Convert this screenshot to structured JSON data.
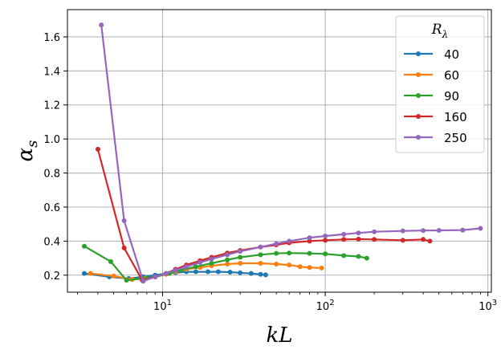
{
  "chart_data": {
    "type": "line",
    "xlabel": "kL",
    "ylabel": "α_s",
    "xscale": "log",
    "xlim": [
      2.6,
      1050
    ],
    "ylim": [
      0.1,
      1.76
    ],
    "grid": true,
    "legend": {
      "title": "R_λ",
      "placement": "top-right"
    },
    "x_ticks": [
      {
        "value": 10,
        "base": "10",
        "exp": "1"
      },
      {
        "value": 100,
        "base": "10",
        "exp": "2"
      },
      {
        "value": 1000,
        "base": "10",
        "exp": "3"
      }
    ],
    "y_ticks": [
      {
        "value": 0.2,
        "label": "0.2"
      },
      {
        "value": 0.4,
        "label": "0.4"
      },
      {
        "value": 0.6,
        "label": "0.6"
      },
      {
        "value": 0.8,
        "label": "0.8"
      },
      {
        "value": 1.0,
        "label": "1.0"
      },
      {
        "value": 1.2,
        "label": "1.2"
      },
      {
        "value": 1.4,
        "label": "1.4"
      },
      {
        "value": 1.6,
        "label": "1.6"
      }
    ],
    "series": [
      {
        "name": "40",
        "color": "#1f77b4",
        "x": [
          3.3,
          4.7,
          6.2,
          7.6,
          9.0,
          10.5,
          12,
          14,
          16,
          19,
          22,
          26,
          30,
          35,
          40,
          43
        ],
        "y": [
          0.21,
          0.19,
          0.18,
          0.19,
          0.2,
          0.21,
          0.215,
          0.22,
          0.22,
          0.22,
          0.22,
          0.218,
          0.214,
          0.21,
          0.205,
          0.202
        ]
      },
      {
        "name": "60",
        "color": "#ff7f0e",
        "x": [
          3.6,
          5.0,
          6.5,
          7.8,
          9.0,
          10.5,
          12,
          14,
          17,
          20,
          25,
          30,
          40,
          50,
          60,
          70,
          80,
          95
        ],
        "y": [
          0.21,
          0.195,
          0.175,
          0.18,
          0.19,
          0.205,
          0.22,
          0.235,
          0.245,
          0.255,
          0.265,
          0.27,
          0.27,
          0.265,
          0.26,
          0.25,
          0.245,
          0.242
        ]
      },
      {
        "name": "90",
        "color": "#2ca02c",
        "x": [
          3.3,
          4.8,
          6.0,
          7.5,
          9.0,
          11,
          13,
          16,
          20,
          25,
          30,
          40,
          50,
          60,
          80,
          100,
          130,
          160,
          180
        ],
        "y": [
          0.37,
          0.28,
          0.17,
          0.18,
          0.19,
          0.21,
          0.23,
          0.25,
          0.27,
          0.29,
          0.305,
          0.32,
          0.328,
          0.33,
          0.328,
          0.325,
          0.315,
          0.31,
          0.3
        ]
      },
      {
        "name": "160",
        "color": "#d62728",
        "x": [
          4.0,
          5.8,
          7.5,
          9.0,
          10.5,
          12,
          14,
          17,
          20,
          25,
          30,
          40,
          50,
          60,
          80,
          100,
          130,
          160,
          200,
          300,
          400,
          440
        ],
        "y": [
          0.94,
          0.36,
          0.17,
          0.19,
          0.21,
          0.235,
          0.26,
          0.285,
          0.305,
          0.33,
          0.345,
          0.365,
          0.378,
          0.39,
          0.4,
          0.405,
          0.41,
          0.412,
          0.41,
          0.405,
          0.41,
          0.4
        ]
      },
      {
        "name": "250",
        "color": "#9467bd",
        "x": [
          4.2,
          5.8,
          7.6,
          9.0,
          10.5,
          12,
          14,
          17,
          20,
          25,
          30,
          40,
          50,
          60,
          80,
          100,
          130,
          160,
          200,
          300,
          400,
          500,
          700,
          900
        ],
        "y": [
          1.67,
          0.52,
          0.165,
          0.19,
          0.21,
          0.23,
          0.25,
          0.275,
          0.295,
          0.32,
          0.34,
          0.365,
          0.385,
          0.4,
          0.42,
          0.43,
          0.44,
          0.448,
          0.455,
          0.46,
          0.462,
          0.463,
          0.465,
          0.475
        ]
      }
    ]
  }
}
